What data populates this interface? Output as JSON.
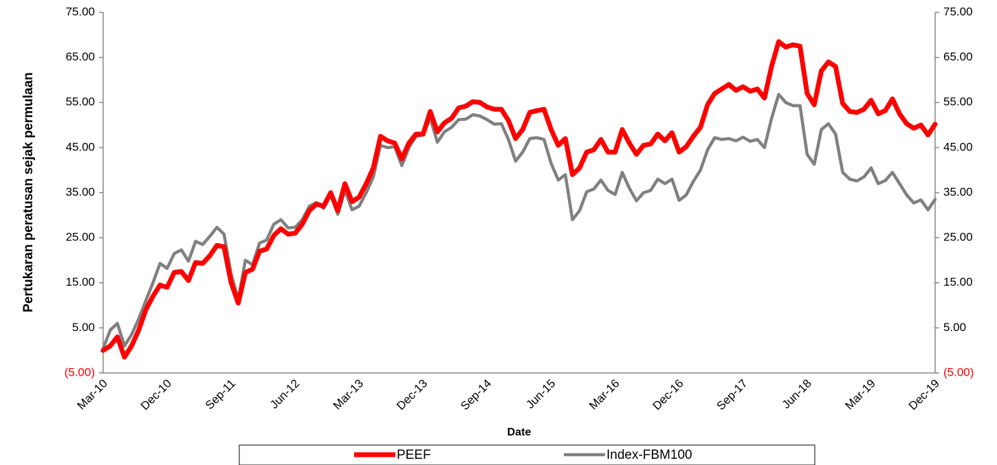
{
  "chart_data": {
    "type": "line",
    "y_label": "Pertukaran peratusan sejak permulaan",
    "x_label": "Date",
    "legend": "bottom",
    "negative_color": "#ff0000",
    "categories": [
      "Mar-10",
      null,
      null,
      null,
      null,
      null,
      null,
      null,
      null,
      "Dec-10",
      null,
      null,
      null,
      null,
      null,
      null,
      null,
      null,
      "Sep-11",
      null,
      null,
      null,
      null,
      null,
      null,
      null,
      null,
      "Jun-12",
      null,
      null,
      null,
      null,
      null,
      null,
      null,
      null,
      "Mar-13",
      null,
      null,
      null,
      null,
      null,
      null,
      null,
      null,
      "Dec-13",
      null,
      null,
      null,
      null,
      null,
      null,
      null,
      null,
      "Sep-14",
      null,
      null,
      null,
      null,
      null,
      null,
      null,
      null,
      "Jun-15",
      null,
      null,
      null,
      null,
      null,
      null,
      null,
      null,
      "Mar-16",
      null,
      null,
      null,
      null,
      null,
      null,
      null,
      null,
      "Dec-16",
      null,
      null,
      null,
      null,
      null,
      null,
      null,
      null,
      "Sep-17",
      null,
      null,
      null,
      null,
      null,
      null,
      null,
      null,
      "Jun-18",
      null,
      null,
      null,
      null,
      null,
      null,
      null,
      null,
      "Mar-19",
      null,
      null,
      null,
      null,
      null,
      null,
      null,
      null,
      "Dec-19"
    ],
    "series": [
      {
        "name": "PEEF",
        "color": "#ff0000",
        "width": 7,
        "values": [
          0,
          1,
          3,
          -1.5,
          1,
          4.5,
          9,
          12,
          14.5,
          14,
          17.3,
          17.5,
          15.5,
          19.5,
          19.3,
          21,
          23.3,
          23,
          15,
          10.5,
          17.3,
          18,
          22,
          22.5,
          25.5,
          27,
          25.8,
          26,
          28,
          31,
          32.5,
          32,
          35,
          31,
          37,
          33,
          34,
          37,
          40.5,
          47.5,
          46.5,
          46,
          42.5,
          46,
          48,
          48,
          53,
          48.5,
          50.5,
          51.5,
          53.8,
          54.2,
          55.2,
          55,
          54,
          53.5,
          53.5,
          51,
          47,
          49,
          52.8,
          53.2,
          53.5,
          49,
          45.5,
          47,
          39,
          40.5,
          44,
          44.5,
          46.8,
          44,
          44,
          49,
          46,
          43.5,
          45.5,
          45.8,
          48,
          46.5,
          48.3,
          44,
          45.2,
          47.5,
          49.5,
          54.5,
          57,
          58,
          59,
          57.7,
          58.5,
          57.5,
          58,
          56,
          63,
          68.5,
          67.3,
          67.8,
          67.5,
          57,
          54.5,
          62,
          64,
          63,
          54.8,
          53,
          52.8,
          53.5,
          55.5,
          52.5,
          53.2,
          55.8,
          52.5,
          50.3,
          49.3,
          50,
          47.8,
          50.2
        ]
      },
      {
        "name": "Index-FBM100",
        "color": "#808080",
        "width": 4.5,
        "values": [
          0.5,
          4.5,
          6,
          1,
          3.5,
          7,
          11,
          15,
          19.3,
          18.2,
          21.5,
          22.3,
          19.8,
          24.2,
          23.5,
          25.3,
          27.3,
          25.8,
          17,
          11.3,
          20,
          19,
          23.8,
          24.5,
          28,
          29,
          27.2,
          27.3,
          29,
          32,
          32.8,
          31.5,
          34.5,
          30.2,
          35.5,
          31.2,
          32,
          35,
          38.5,
          45.5,
          45,
          45.2,
          41,
          45,
          47.5,
          47.8,
          51.5,
          46.2,
          48.5,
          49.5,
          51.2,
          51.3,
          52.3,
          52,
          51.2,
          50.2,
          50.3,
          46.8,
          42,
          44,
          47,
          47.2,
          46.8,
          41.5,
          37.8,
          39,
          29,
          31,
          35.2,
          35.8,
          37.8,
          35.5,
          34.6,
          39.5,
          36,
          33.2,
          35,
          35.5,
          38,
          37,
          38,
          33.3,
          34.5,
          37.5,
          40,
          44.5,
          47.2,
          46.8,
          47,
          46.5,
          47.3,
          46.4,
          46.8,
          45,
          51.5,
          56.8,
          55,
          54.3,
          54.3,
          43.5,
          41.3,
          49,
          50.3,
          48,
          39.5,
          38,
          37.6,
          38.5,
          40.5,
          37,
          37.7,
          39.5,
          37,
          34.5,
          32.7,
          33.4,
          31.2,
          33.5
        ]
      }
    ],
    "ylim": [
      -5,
      75
    ],
    "yticks": [
      {
        "value": -5,
        "label": "(5.00)"
      },
      {
        "value": 5,
        "label": "5.00"
      },
      {
        "value": 15,
        "label": "15.00"
      },
      {
        "value": 25,
        "label": "25.00"
      },
      {
        "value": 35,
        "label": "35.00"
      },
      {
        "value": 45,
        "label": "45.00"
      },
      {
        "value": 55,
        "label": "55.00"
      },
      {
        "value": 65,
        "label": "65.00"
      },
      {
        "value": 75,
        "label": "75.00"
      }
    ],
    "y2lim": [
      -5,
      75
    ],
    "y2ticks": [
      {
        "value": -5,
        "label": "(5.00)"
      },
      {
        "value": 5,
        "label": "5.00"
      },
      {
        "value": 15,
        "label": "15.00"
      },
      {
        "value": 25,
        "label": "25.00"
      },
      {
        "value": 35,
        "label": "35.00"
      },
      {
        "value": 45,
        "label": "45.00"
      },
      {
        "value": 55,
        "label": "55.00"
      },
      {
        "value": 65,
        "label": "65.00"
      },
      {
        "value": 75,
        "label": "75.00"
      }
    ]
  }
}
